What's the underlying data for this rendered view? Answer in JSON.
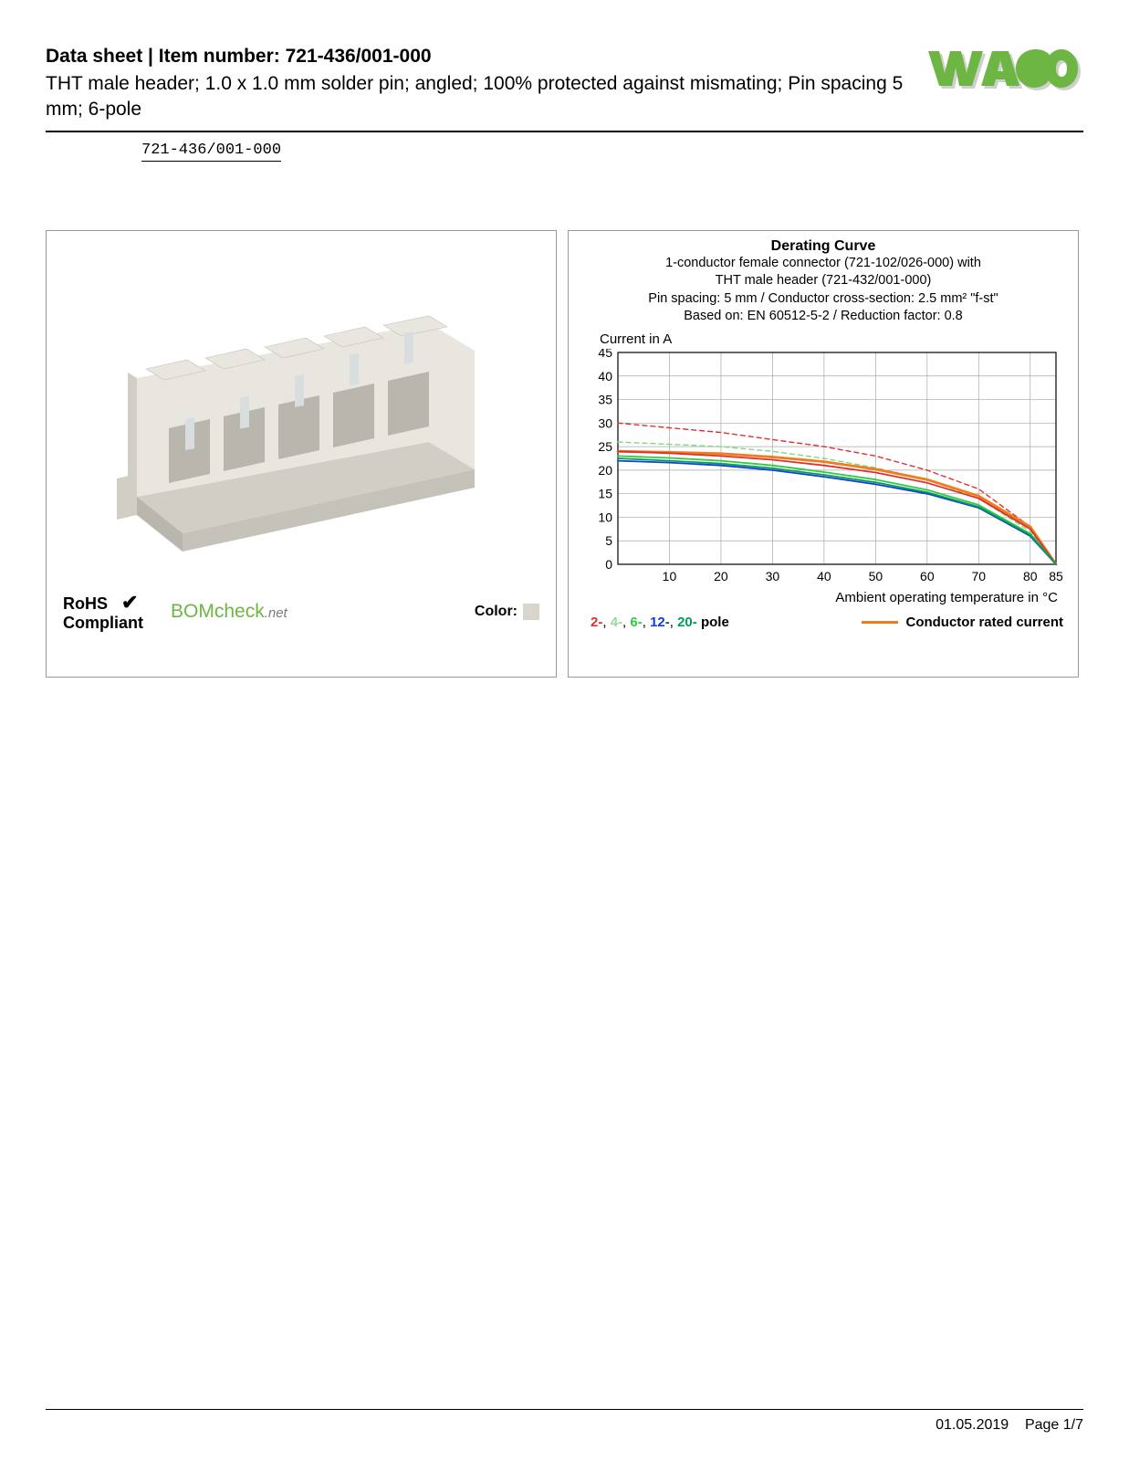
{
  "header": {
    "title": "Data sheet  |  Item number: 721-436/001-000",
    "subtitle": "THT male header; 1.0 x 1.0 mm solder pin; angled; 100% protected against mismating; Pin spacing 5 mm; 6-pole",
    "item_link": "721-436/001-000"
  },
  "logo": {
    "text": "WAGO",
    "fill": "#6db644",
    "shadow": "#a8a8a8"
  },
  "product_panel": {
    "rohs_line1": "RoHS",
    "rohs_line2": "Compliant",
    "checkmark": "✔",
    "bomcheck_main": "BOMcheck",
    "bomcheck_suffix": ".net",
    "color_label": "Color:",
    "color_swatch": "#d8d5cc",
    "connector_body": "#e8e6de",
    "connector_shade": "#d0cec5",
    "connector_dark": "#b8b6ad"
  },
  "chart": {
    "title": "Derating Curve",
    "sub1": "1-conductor female connector (721-102/026-000) with",
    "sub2": "THT male header (721-432/001-000)",
    "sub3": "Pin spacing: 5 mm / Conductor cross-section: 2.5 mm² \"f-st\"",
    "sub4": "Based on: EN 60512-5-2 / Reduction factor: 0.8",
    "y_label": "Current in A",
    "x_label": "Ambient operating temperature in °C",
    "grid_color": "#a8a8a8",
    "background_color": "#ffffff",
    "xlim": [
      0,
      85
    ],
    "ylim": [
      0,
      45
    ],
    "x_ticks": [
      10,
      20,
      30,
      40,
      50,
      60,
      70,
      80,
      85
    ],
    "y_ticks": [
      0,
      5,
      10,
      15,
      20,
      25,
      30,
      35,
      40,
      45
    ],
    "tick_fontsize": 14,
    "series": [
      {
        "name": "2-pole-dashed",
        "color": "#e03030",
        "dashed": true,
        "width": 1.4,
        "points": [
          [
            0,
            30
          ],
          [
            10,
            29
          ],
          [
            20,
            28
          ],
          [
            30,
            26.5
          ],
          [
            40,
            25
          ],
          [
            50,
            23
          ],
          [
            60,
            20
          ],
          [
            70,
            16
          ],
          [
            80,
            8
          ],
          [
            85,
            0
          ]
        ]
      },
      {
        "name": "4-pole-dashed",
        "color": "#7ed97e",
        "dashed": true,
        "width": 1.4,
        "points": [
          [
            0,
            26
          ],
          [
            10,
            25.5
          ],
          [
            20,
            25
          ],
          [
            30,
            24
          ],
          [
            40,
            22.5
          ],
          [
            50,
            20.5
          ],
          [
            60,
            18
          ],
          [
            70,
            14
          ],
          [
            80,
            7
          ],
          [
            85,
            0
          ]
        ]
      },
      {
        "name": "conductor-rated",
        "color": "#f07d1a",
        "dashed": false,
        "width": 2.8,
        "points": [
          [
            0,
            24
          ],
          [
            10,
            23.8
          ],
          [
            20,
            23.5
          ],
          [
            30,
            22.8
          ],
          [
            40,
            21.8
          ],
          [
            50,
            20.2
          ],
          [
            60,
            18
          ],
          [
            70,
            14.5
          ],
          [
            80,
            8
          ],
          [
            85,
            0
          ]
        ]
      },
      {
        "name": "2-pole",
        "color": "#e03030",
        "dashed": false,
        "width": 1.8,
        "points": [
          [
            0,
            24
          ],
          [
            10,
            23.6
          ],
          [
            20,
            23
          ],
          [
            30,
            22.2
          ],
          [
            40,
            21
          ],
          [
            50,
            19.5
          ],
          [
            60,
            17.3
          ],
          [
            70,
            14
          ],
          [
            80,
            7.5
          ],
          [
            85,
            0
          ]
        ]
      },
      {
        "name": "6-pole",
        "color": "#2ecc40",
        "dashed": false,
        "width": 1.8,
        "points": [
          [
            0,
            23
          ],
          [
            10,
            22.6
          ],
          [
            20,
            22
          ],
          [
            30,
            21
          ],
          [
            40,
            19.6
          ],
          [
            50,
            18
          ],
          [
            60,
            15.8
          ],
          [
            70,
            12.6
          ],
          [
            80,
            6.5
          ],
          [
            85,
            0
          ]
        ]
      },
      {
        "name": "12-pole",
        "color": "#1040d0",
        "dashed": false,
        "width": 1.8,
        "points": [
          [
            0,
            22
          ],
          [
            10,
            21.6
          ],
          [
            20,
            21
          ],
          [
            30,
            20
          ],
          [
            40,
            18.6
          ],
          [
            50,
            17
          ],
          [
            60,
            15
          ],
          [
            70,
            12
          ],
          [
            80,
            6
          ],
          [
            85,
            0
          ]
        ]
      },
      {
        "name": "20-pole",
        "color": "#059b5a",
        "dashed": false,
        "width": 1.8,
        "points": [
          [
            0,
            22.5
          ],
          [
            10,
            22
          ],
          [
            20,
            21.4
          ],
          [
            30,
            20.4
          ],
          [
            40,
            19
          ],
          [
            50,
            17.4
          ],
          [
            60,
            15.3
          ],
          [
            70,
            12.2
          ],
          [
            80,
            6.2
          ],
          [
            85,
            0
          ]
        ]
      }
    ],
    "legend_poles": [
      {
        "label": "2-",
        "color": "#e03030"
      },
      {
        "label": "4-",
        "color": "#9ad99a"
      },
      {
        "label": "6-",
        "color": "#2ecc40"
      },
      {
        "label": "12-",
        "color": "#1040d0"
      },
      {
        "label": "20-",
        "color": "#059b5a"
      }
    ],
    "legend_poles_suffix": " pole",
    "legend_conductor": "Conductor rated current"
  },
  "footer": {
    "date": "01.05.2019",
    "page": "Page 1/7"
  }
}
